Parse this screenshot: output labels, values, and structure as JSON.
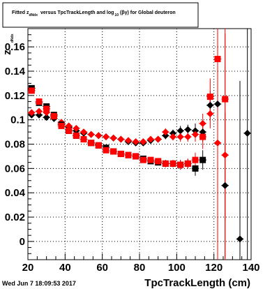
{
  "chart_data": {
    "type": "scatter",
    "title_parts": {
      "a": "Fitted z",
      "a_sub": "dNdx",
      "b": "versus TpcTrackLength and log",
      "b_sub": "10",
      "c": "(βγ) for Global deuteron"
    },
    "xlabel": "TpcTrackLength (cm)",
    "ylabel": "z",
    "ylabel_sub": "dNdx",
    "xlim": [
      20,
      140
    ],
    "ylim": [
      -0.015,
      0.175
    ],
    "x_ticks": [
      20,
      40,
      60,
      80,
      100,
      120,
      140
    ],
    "y_ticks": [
      0,
      0.02,
      0.04,
      0.06,
      0.08,
      0.1,
      0.12,
      0.14,
      0.16
    ],
    "x_tick_labels": [
      "20",
      "40",
      "60",
      "80",
      "100",
      "120",
      "140"
    ],
    "y_tick_labels": [
      "0",
      "0.02",
      "0.04",
      "0.06",
      "0.08",
      "0.1",
      "0.12",
      "0.14",
      "0.16"
    ],
    "grid": true,
    "series": [
      {
        "color": "#000000",
        "marker": "diamond",
        "points": [
          {
            "x": 22,
            "y": 0.104,
            "err": 0.002
          },
          {
            "x": 26,
            "y": 0.104,
            "err": 0.002
          },
          {
            "x": 30,
            "y": 0.102,
            "err": 0.002
          },
          {
            "x": 34,
            "y": 0.101,
            "err": 0.002
          },
          {
            "x": 38,
            "y": 0.097,
            "err": 0.002
          },
          {
            "x": 42,
            "y": 0.094,
            "err": 0.002
          },
          {
            "x": 46,
            "y": 0.091,
            "err": 0.002
          },
          {
            "x": 50,
            "y": 0.089,
            "err": 0.002
          },
          {
            "x": 54,
            "y": 0.088,
            "err": 0.002
          },
          {
            "x": 58,
            "y": 0.087,
            "err": 0.002
          },
          {
            "x": 62,
            "y": 0.086,
            "err": 0.002
          },
          {
            "x": 66,
            "y": 0.085,
            "err": 0.002
          },
          {
            "x": 70,
            "y": 0.084,
            "err": 0.002
          },
          {
            "x": 74,
            "y": 0.082,
            "err": 0.002
          },
          {
            "x": 78,
            "y": 0.081,
            "err": 0.002
          },
          {
            "x": 82,
            "y": 0.081,
            "err": 0.002
          },
          {
            "x": 86,
            "y": 0.083,
            "err": 0.002
          },
          {
            "x": 90,
            "y": 0.084,
            "err": 0.002
          },
          {
            "x": 94,
            "y": 0.087,
            "err": 0.003
          },
          {
            "x": 98,
            "y": 0.089,
            "err": 0.003
          },
          {
            "x": 102,
            "y": 0.091,
            "err": 0.004
          },
          {
            "x": 106,
            "y": 0.092,
            "err": 0.004
          },
          {
            "x": 110,
            "y": 0.091,
            "err": 0.006
          },
          {
            "x": 114,
            "y": 0.09,
            "err": 0.008
          },
          {
            "x": 118,
            "y": 0.112,
            "err": 0.012
          },
          {
            "x": 122,
            "y": 0.113,
            "err": 0.05
          },
          {
            "x": 126,
            "y": 0.046,
            "err": 0.06
          },
          {
            "x": 134,
            "y": 0.002,
            "err": 0.13
          },
          {
            "x": 138,
            "y": 0.089,
            "err": 0.13
          }
        ]
      },
      {
        "color": "#ff0000",
        "marker": "diamond",
        "points": [
          {
            "x": 22,
            "y": 0.106,
            "err": 0.002
          },
          {
            "x": 26,
            "y": 0.107,
            "err": 0.002
          },
          {
            "x": 30,
            "y": 0.106,
            "err": 0.002
          },
          {
            "x": 34,
            "y": 0.104,
            "err": 0.002
          },
          {
            "x": 38,
            "y": 0.098,
            "err": 0.002
          },
          {
            "x": 42,
            "y": 0.095,
            "err": 0.002
          },
          {
            "x": 46,
            "y": 0.093,
            "err": 0.002
          },
          {
            "x": 50,
            "y": 0.09,
            "err": 0.002
          },
          {
            "x": 54,
            "y": 0.088,
            "err": 0.002
          },
          {
            "x": 58,
            "y": 0.087,
            "err": 0.002
          },
          {
            "x": 62,
            "y": 0.086,
            "err": 0.002
          },
          {
            "x": 66,
            "y": 0.085,
            "err": 0.002
          },
          {
            "x": 70,
            "y": 0.084,
            "err": 0.002
          },
          {
            "x": 74,
            "y": 0.083,
            "err": 0.002
          },
          {
            "x": 78,
            "y": 0.082,
            "err": 0.002
          },
          {
            "x": 82,
            "y": 0.082,
            "err": 0.002
          },
          {
            "x": 86,
            "y": 0.084,
            "err": 0.002
          },
          {
            "x": 90,
            "y": 0.084,
            "err": 0.002
          },
          {
            "x": 94,
            "y": 0.09,
            "err": 0.003
          },
          {
            "x": 98,
            "y": 0.086,
            "err": 0.003
          },
          {
            "x": 102,
            "y": 0.086,
            "err": 0.004
          },
          {
            "x": 106,
            "y": 0.086,
            "err": 0.004
          },
          {
            "x": 110,
            "y": 0.088,
            "err": 0.006
          },
          {
            "x": 114,
            "y": 0.097,
            "err": 0.008
          },
          {
            "x": 118,
            "y": 0.105,
            "err": 0.012
          },
          {
            "x": 122,
            "y": 0.081,
            "err": 0.1
          },
          {
            "x": 126,
            "y": 0.071,
            "err": 0.1
          }
        ]
      },
      {
        "color": "#000000",
        "marker": "square",
        "points": [
          {
            "x": 22,
            "y": 0.126,
            "err": 0.002
          },
          {
            "x": 26,
            "y": 0.114,
            "err": 0.002
          },
          {
            "x": 30,
            "y": 0.111,
            "err": 0.002
          },
          {
            "x": 34,
            "y": 0.104,
            "err": 0.002
          },
          {
            "x": 38,
            "y": 0.096,
            "err": 0.002
          },
          {
            "x": 42,
            "y": 0.091,
            "err": 0.002
          },
          {
            "x": 46,
            "y": 0.087,
            "err": 0.002
          },
          {
            "x": 50,
            "y": 0.084,
            "err": 0.002
          },
          {
            "x": 54,
            "y": 0.081,
            "err": 0.002
          },
          {
            "x": 58,
            "y": 0.079,
            "err": 0.002
          },
          {
            "x": 62,
            "y": 0.077,
            "err": 0.002
          },
          {
            "x": 66,
            "y": 0.074,
            "err": 0.002
          },
          {
            "x": 70,
            "y": 0.072,
            "err": 0.002
          },
          {
            "x": 74,
            "y": 0.071,
            "err": 0.002
          },
          {
            "x": 78,
            "y": 0.07,
            "err": 0.002
          },
          {
            "x": 82,
            "y": 0.068,
            "err": 0.002
          },
          {
            "x": 86,
            "y": 0.066,
            "err": 0.002
          },
          {
            "x": 90,
            "y": 0.065,
            "err": 0.002
          },
          {
            "x": 94,
            "y": 0.064,
            "err": 0.003
          },
          {
            "x": 98,
            "y": 0.064,
            "err": 0.003
          },
          {
            "x": 102,
            "y": 0.063,
            "err": 0.004
          },
          {
            "x": 106,
            "y": 0.064,
            "err": 0.004
          },
          {
            "x": 110,
            "y": 0.06,
            "err": 0.006
          },
          {
            "x": 114,
            "y": 0.067,
            "err": 0.008
          }
        ]
      },
      {
        "color": "#ff0000",
        "marker": "square",
        "points": [
          {
            "x": 22,
            "y": 0.124,
            "err": 0.002
          },
          {
            "x": 26,
            "y": 0.115,
            "err": 0.002
          },
          {
            "x": 30,
            "y": 0.109,
            "err": 0.002
          },
          {
            "x": 34,
            "y": 0.103,
            "err": 0.002
          },
          {
            "x": 38,
            "y": 0.095,
            "err": 0.002
          },
          {
            "x": 42,
            "y": 0.091,
            "err": 0.002
          },
          {
            "x": 46,
            "y": 0.087,
            "err": 0.002
          },
          {
            "x": 50,
            "y": 0.084,
            "err": 0.002
          },
          {
            "x": 54,
            "y": 0.081,
            "err": 0.002
          },
          {
            "x": 58,
            "y": 0.079,
            "err": 0.002
          },
          {
            "x": 62,
            "y": 0.075,
            "err": 0.002
          },
          {
            "x": 66,
            "y": 0.074,
            "err": 0.002
          },
          {
            "x": 70,
            "y": 0.072,
            "err": 0.002
          },
          {
            "x": 74,
            "y": 0.071,
            "err": 0.002
          },
          {
            "x": 78,
            "y": 0.07,
            "err": 0.002
          },
          {
            "x": 82,
            "y": 0.067,
            "err": 0.002
          },
          {
            "x": 86,
            "y": 0.067,
            "err": 0.002
          },
          {
            "x": 90,
            "y": 0.066,
            "err": 0.002
          },
          {
            "x": 94,
            "y": 0.064,
            "err": 0.003
          },
          {
            "x": 98,
            "y": 0.064,
            "err": 0.003
          },
          {
            "x": 102,
            "y": 0.063,
            "err": 0.004
          },
          {
            "x": 106,
            "y": 0.064,
            "err": 0.004
          },
          {
            "x": 110,
            "y": 0.067,
            "err": 0.006
          },
          {
            "x": 114,
            "y": 0.086,
            "err": 0.01
          },
          {
            "x": 118,
            "y": 0.119,
            "err": 0.015
          },
          {
            "x": 122,
            "y": 0.15,
            "err": 0.1
          },
          {
            "x": 126,
            "y": 0.117,
            "err": 0.1
          }
        ]
      }
    ]
  },
  "footer": {
    "timestamp": "Wed Jun  7 18:09:53 2017"
  }
}
